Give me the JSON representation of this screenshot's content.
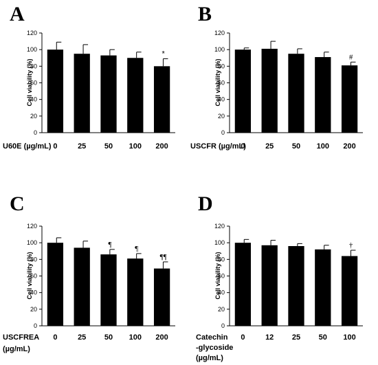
{
  "chart_data": [
    {
      "panel": "A",
      "type": "bar",
      "ylabel": "Cell viability (%)",
      "xlabel_lines": [
        "U60E (µg/mL)"
      ],
      "categories": [
        "0",
        "25",
        "50",
        "100",
        "200"
      ],
      "values": [
        100,
        95,
        93,
        90,
        80
      ],
      "errors": [
        9,
        11,
        7,
        7,
        9
      ],
      "annotations": [
        "",
        "",
        "",
        "",
        "*"
      ],
      "ylim": [
        0,
        120
      ],
      "yticks": [
        0,
        20,
        40,
        60,
        80,
        100,
        120
      ],
      "bar_color": "#000000"
    },
    {
      "panel": "B",
      "type": "bar",
      "ylabel": "Cell viability (%)",
      "xlabel_lines": [
        "USCFR (µg/mL)"
      ],
      "categories": [
        "0",
        "25",
        "50",
        "100",
        "200"
      ],
      "values": [
        100,
        101,
        95,
        91,
        81
      ],
      "errors": [
        2,
        9,
        6,
        6,
        4
      ],
      "annotations": [
        "",
        "",
        "",
        "",
        "#"
      ],
      "ylim": [
        0,
        120
      ],
      "yticks": [
        0,
        20,
        40,
        60,
        80,
        100,
        120
      ],
      "bar_color": "#000000"
    },
    {
      "panel": "C",
      "type": "bar",
      "ylabel": "Cell viability (%)",
      "xlabel_lines": [
        "USCFREA",
        "(µg/mL)"
      ],
      "categories": [
        "0",
        "25",
        "50",
        "100",
        "200"
      ],
      "values": [
        100,
        94,
        86,
        81,
        69
      ],
      "errors": [
        6,
        8,
        6,
        6,
        8
      ],
      "annotations": [
        "",
        "",
        "¶",
        "¶",
        "¶¶"
      ],
      "ylim": [
        0,
        120
      ],
      "yticks": [
        0,
        20,
        40,
        60,
        80,
        100,
        120
      ],
      "bar_color": "#000000"
    },
    {
      "panel": "D",
      "type": "bar",
      "ylabel": "Cell viability (%)",
      "xlabel_lines": [
        "Catechin",
        "-glycoside",
        "(µg/mL)"
      ],
      "categories": [
        "0",
        "12",
        "25",
        "50",
        "100"
      ],
      "values": [
        100,
        97,
        96,
        92,
        84
      ],
      "errors": [
        4,
        6,
        3,
        5,
        7
      ],
      "annotations": [
        "",
        "",
        "",
        "",
        "†"
      ],
      "ylim": [
        0,
        120
      ],
      "yticks": [
        0,
        20,
        40,
        60,
        80,
        100,
        120
      ],
      "bar_color": "#000000"
    }
  ]
}
